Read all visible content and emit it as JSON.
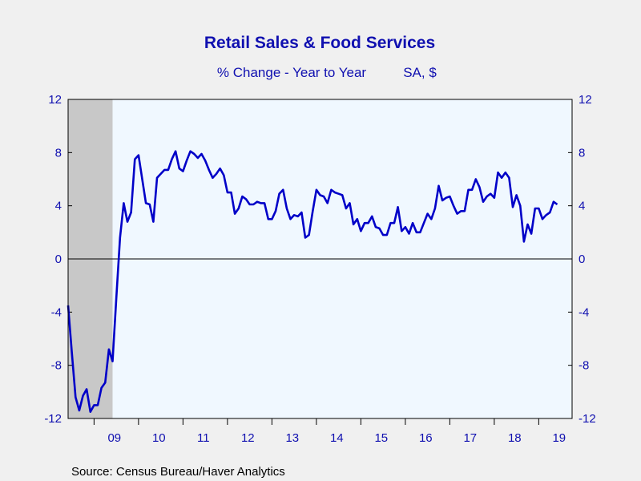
{
  "chart_data": {
    "type": "line",
    "title": "Retail Sales & Food Services",
    "subtitle_left": "% Change - Year to Year",
    "subtitle_right": "SA, $",
    "source": "Source:  Census Bureau/Haver Analytics",
    "ylim": [
      -12,
      12
    ],
    "yticks": [
      12,
      8,
      4,
      0,
      -4,
      -8,
      -12
    ],
    "ytick_labels": [
      "12",
      "8",
      "4",
      "0",
      "-4",
      "-8",
      "-12"
    ],
    "xlim": [
      "2008-06",
      "2019-10"
    ],
    "xtick_labels": [
      "09",
      "10",
      "11",
      "12",
      "13",
      "14",
      "15",
      "16",
      "17",
      "18",
      "19"
    ],
    "xtick_years": [
      2009,
      2010,
      2011,
      2012,
      2013,
      2014,
      2015,
      2016,
      2017,
      2018,
      2019
    ],
    "recession": {
      "start": "2008-06",
      "end": "2009-06"
    },
    "zero_line": true,
    "grid": false,
    "colors": {
      "line": "#0000c8",
      "plot_background": "#f0f8ff",
      "recession_band": "#c8c8c8",
      "axis": "#000000",
      "text": "#1010b0"
    },
    "series": [
      {
        "start": "2008-06",
        "values": [
          -3.5,
          -7.0,
          -10.4,
          -11.4,
          -10.3,
          -9.8,
          -11.5,
          -11.0,
          -11.0,
          -9.7,
          -9.3,
          -6.8,
          -7.7,
          -3.0,
          1.6,
          4.2,
          2.8,
          3.5,
          7.5,
          7.8,
          6.0,
          4.2,
          4.1,
          2.8,
          6.1,
          6.4,
          6.7,
          6.7,
          7.5,
          8.1,
          6.8,
          6.6,
          7.4,
          8.1,
          7.9,
          7.6,
          7.9,
          7.4,
          6.7,
          6.1,
          6.4,
          6.8,
          6.3,
          5.0,
          5.0,
          3.4,
          3.8,
          4.7,
          4.5,
          4.1,
          4.1,
          4.3,
          4.2,
          4.2,
          3.0,
          3.0,
          3.6,
          4.9,
          5.2,
          3.8,
          3.0,
          3.3,
          3.2,
          3.5,
          1.6,
          1.8,
          3.6,
          5.2,
          4.8,
          4.7,
          4.2,
          5.2,
          5.0,
          4.9,
          4.8,
          3.8,
          4.2,
          2.6,
          3.0,
          2.1,
          2.7,
          2.7,
          3.2,
          2.4,
          2.3,
          1.8,
          1.8,
          2.7,
          2.7,
          3.9,
          2.1,
          2.4,
          1.9,
          2.7,
          2.0,
          2.0,
          2.7,
          3.4,
          3.0,
          3.8,
          5.5,
          4.4,
          4.6,
          4.7,
          4.0,
          3.4,
          3.6,
          3.6,
          5.2,
          5.2,
          6.0,
          5.4,
          4.3,
          4.7,
          4.9,
          4.6,
          6.5,
          6.1,
          6.5,
          6.1,
          3.9,
          4.8,
          4.0,
          1.3,
          2.6,
          1.9,
          3.8,
          3.8,
          3.0,
          3.3,
          3.5,
          4.3,
          4.1
        ]
      }
    ]
  }
}
